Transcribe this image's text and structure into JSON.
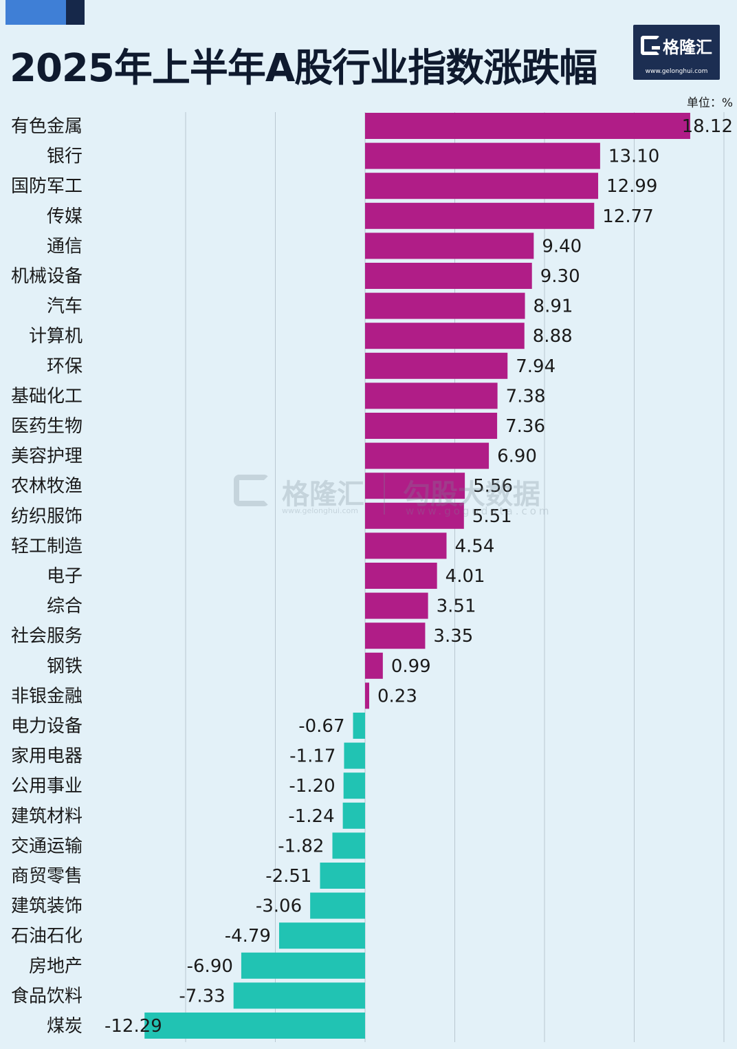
{
  "header": {
    "title": "2025年上半年A股行业指数涨跌幅",
    "unit": "单位：%"
  },
  "logo": {
    "brand": "格隆汇",
    "url": "www.gelonghui.com"
  },
  "watermark": {
    "brand1": "格隆汇",
    "url1": "www.gelonghui.com",
    "brand2": "勾股大数据",
    "url2": "www.gogudata.com"
  },
  "colors": {
    "positive": "#b01d87",
    "negative": "#21c3b3",
    "accent_dark": "#16284a",
    "accent_blue": "#3f7fd6",
    "logo_bg": "#1c2e52"
  },
  "chart_data": {
    "type": "bar",
    "orientation": "horizontal",
    "categories": [
      "有色金属",
      "银行",
      "国防军工",
      "传媒",
      "通信",
      "机械设备",
      "汽车",
      "计算机",
      "环保",
      "基础化工",
      "医药生物",
      "美容护理",
      "农林牧渔",
      "纺织服饰",
      "轻工制造",
      "电子",
      "综合",
      "社会服务",
      "钢铁",
      "非银金融",
      "电力设备",
      "家用电器",
      "公用事业",
      "建筑材料",
      "交通运输",
      "商贸零售",
      "建筑装饰",
      "石油石化",
      "房地产",
      "食品饮料",
      "煤炭"
    ],
    "values": [
      18.12,
      13.1,
      12.99,
      12.77,
      9.4,
      9.3,
      8.91,
      8.88,
      7.94,
      7.38,
      7.36,
      6.9,
      5.56,
      5.51,
      4.54,
      4.01,
      3.51,
      3.35,
      0.99,
      0.23,
      -0.67,
      -1.17,
      -1.2,
      -1.24,
      -1.82,
      -2.51,
      -3.06,
      -4.79,
      -6.9,
      -7.33,
      -12.29
    ],
    "value_labels": [
      "18.12",
      "13.10",
      "12.99",
      "12.77",
      "9.40",
      "9.30",
      "8.91",
      "8.88",
      "7.94",
      "7.38",
      "7.36",
      "6.90",
      "5.56",
      "5.51",
      "4.54",
      "4.01",
      "3.51",
      "3.35",
      "0.99",
      "0.23",
      "-0.67",
      "-1.17",
      "-1.20",
      "-1.24",
      "-1.82",
      "-2.51",
      "-3.06",
      "-4.79",
      "-6.90",
      "-7.33",
      "-12.29"
    ],
    "xlim": [
      -15,
      20
    ],
    "gridlines": [
      -10,
      -5,
      0,
      5,
      10,
      15,
      20
    ],
    "grid": true,
    "title": "2025年上半年A股行业指数涨跌幅",
    "unit": "单位：%"
  }
}
